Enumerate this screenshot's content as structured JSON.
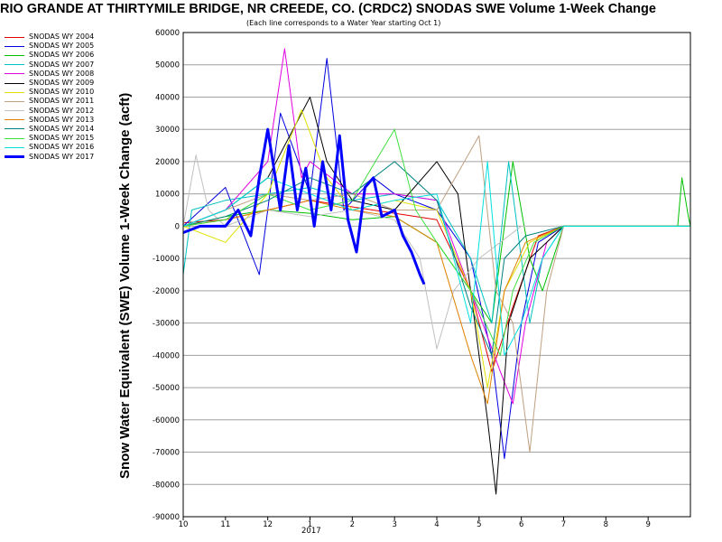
{
  "chart_data": {
    "type": "line",
    "title": "RIO GRANDE AT THIRTYMILE BRIDGE, NR CREEDE, CO. (CRDC2) SNODAS SWE Volume 1-Week Change",
    "subtitle": "(Each line corresponds to a Water Year starting Oct 1)",
    "ylabel": "Snow Water Equivalent (SWE) Volume 1-Week Change (acft)",
    "xlabel": "",
    "ylim": [
      -90000,
      60000
    ],
    "yticks": [
      "60000",
      "50000",
      "40000",
      "30000",
      "20000",
      "10000",
      "0",
      "-10000",
      "-20000",
      "-30000",
      "-40000",
      "-50000",
      "-60000",
      "-70000",
      "-80000",
      "-90000"
    ],
    "xticks": [
      {
        "label": "10",
        "pos": 0
      },
      {
        "label": "11",
        "pos": 1
      },
      {
        "label": "12",
        "pos": 2
      },
      {
        "label": "1",
        "pos": 3
      },
      {
        "label": "2",
        "pos": 4
      },
      {
        "label": "3",
        "pos": 5
      },
      {
        "label": "4",
        "pos": 6
      },
      {
        "label": "5",
        "pos": 7
      },
      {
        "label": "6",
        "pos": 8
      },
      {
        "label": "7",
        "pos": 9
      },
      {
        "label": "8",
        "pos": 10
      },
      {
        "label": "9",
        "pos": 11
      }
    ],
    "xlim": [
      0,
      12
    ],
    "year_label": "2017",
    "grid": true,
    "legend_placement": "left",
    "series": [
      {
        "name": "SNODAS WY 2004",
        "color": "#e00000",
        "width": 1,
        "points": [
          [
            0,
            1000
          ],
          [
            1,
            2000
          ],
          [
            2,
            5000
          ],
          [
            3,
            8000
          ],
          [
            4,
            6000
          ],
          [
            5,
            4000
          ],
          [
            6,
            2000
          ],
          [
            6.8,
            -20000
          ],
          [
            7.3,
            -45000
          ],
          [
            7.8,
            -25000
          ],
          [
            8.4,
            -3000
          ],
          [
            9,
            0
          ],
          [
            12,
            0
          ]
        ]
      },
      {
        "name": "SNODAS WY 2005",
        "color": "#0000e0",
        "width": 1,
        "points": [
          [
            0,
            0
          ],
          [
            1,
            12000
          ],
          [
            1.8,
            -15000
          ],
          [
            2.3,
            35000
          ],
          [
            3,
            10000
          ],
          [
            3.4,
            52000
          ],
          [
            3.8,
            5000
          ],
          [
            4.5,
            15000
          ],
          [
            5,
            10000
          ],
          [
            6,
            5000
          ],
          [
            6.8,
            -10000
          ],
          [
            7.3,
            -40000
          ],
          [
            7.6,
            -72000
          ],
          [
            8,
            -30000
          ],
          [
            8.4,
            -5000
          ],
          [
            9,
            0
          ],
          [
            12,
            0
          ]
        ]
      },
      {
        "name": "SNODAS WY 2006",
        "color": "#00c000",
        "width": 1,
        "points": [
          [
            0,
            0
          ],
          [
            1,
            3000
          ],
          [
            2,
            5000
          ],
          [
            3,
            4000
          ],
          [
            4,
            2000
          ],
          [
            5,
            3000
          ],
          [
            6,
            -5000
          ],
          [
            6.8,
            -20000
          ],
          [
            7.3,
            -30000
          ],
          [
            7.8,
            20000
          ],
          [
            8.2,
            -10000
          ],
          [
            8.5,
            -20000
          ],
          [
            9,
            0
          ],
          [
            11.7,
            0
          ],
          [
            11.8,
            15000
          ],
          [
            11.95,
            3000
          ],
          [
            12,
            0
          ]
        ]
      },
      {
        "name": "SNODAS WY 2007",
        "color": "#00c0c0",
        "width": 1,
        "points": [
          [
            0,
            -15000
          ],
          [
            0.2,
            5000
          ],
          [
            1,
            8000
          ],
          [
            2,
            10000
          ],
          [
            3,
            12000
          ],
          [
            4,
            8000
          ],
          [
            5,
            10000
          ],
          [
            6,
            8000
          ],
          [
            6.8,
            -10000
          ],
          [
            7.3,
            -30000
          ],
          [
            7.7,
            20000
          ],
          [
            8.2,
            -30000
          ],
          [
            8.5,
            -10000
          ],
          [
            9,
            0
          ],
          [
            12,
            0
          ]
        ]
      },
      {
        "name": "SNODAS WY 2008",
        "color": "#e000e0",
        "width": 1,
        "points": [
          [
            0,
            0
          ],
          [
            1,
            5000
          ],
          [
            2,
            20000
          ],
          [
            2.4,
            55000
          ],
          [
            2.8,
            15000
          ],
          [
            3,
            20000
          ],
          [
            4,
            10000
          ],
          [
            5,
            10000
          ],
          [
            6,
            8000
          ],
          [
            6.8,
            -20000
          ],
          [
            7.5,
            -45000
          ],
          [
            7.8,
            -55000
          ],
          [
            8.1,
            -30000
          ],
          [
            8.6,
            -5000
          ],
          [
            9,
            0
          ],
          [
            12,
            0
          ]
        ]
      },
      {
        "name": "SNODAS WY 2009",
        "color": "#000000",
        "width": 1,
        "points": [
          [
            0,
            0
          ],
          [
            1,
            5000
          ],
          [
            2,
            15000
          ],
          [
            3,
            40000
          ],
          [
            3.4,
            20000
          ],
          [
            4,
            8000
          ],
          [
            5,
            5000
          ],
          [
            6,
            20000
          ],
          [
            6.5,
            10000
          ],
          [
            7,
            -40000
          ],
          [
            7.2,
            -60000
          ],
          [
            7.4,
            -83000
          ],
          [
            7.7,
            -30000
          ],
          [
            8.2,
            -10000
          ],
          [
            9,
            0
          ],
          [
            12,
            0
          ]
        ]
      },
      {
        "name": "SNODAS WY 2010",
        "color": "#e0e000",
        "width": 1,
        "points": [
          [
            0,
            0
          ],
          [
            1,
            -5000
          ],
          [
            2,
            10000
          ],
          [
            2.8,
            36000
          ],
          [
            3.4,
            15000
          ],
          [
            4,
            5000
          ],
          [
            5,
            8000
          ],
          [
            6,
            5000
          ],
          [
            6.8,
            -20000
          ],
          [
            7.2,
            -50000
          ],
          [
            7.6,
            -20000
          ],
          [
            8.2,
            -5000
          ],
          [
            9,
            0
          ],
          [
            12,
            0
          ]
        ]
      },
      {
        "name": "SNODAS WY 2011",
        "color": "#c0a080",
        "width": 1,
        "points": [
          [
            0,
            0
          ],
          [
            1,
            5000
          ],
          [
            2,
            10000
          ],
          [
            3,
            8000
          ],
          [
            4,
            10000
          ],
          [
            5,
            5000
          ],
          [
            6,
            5000
          ],
          [
            7,
            28000
          ],
          [
            7.4,
            -20000
          ],
          [
            7.8,
            -30000
          ],
          [
            8.2,
            -70000
          ],
          [
            8.6,
            -20000
          ],
          [
            9,
            0
          ],
          [
            12,
            0
          ]
        ]
      },
      {
        "name": "SNODAS WY 2012",
        "color": "#c0c0c0",
        "width": 1,
        "points": [
          [
            0,
            0
          ],
          [
            0.3,
            22000
          ],
          [
            0.6,
            5000
          ],
          [
            1,
            0
          ],
          [
            2,
            5000
          ],
          [
            3,
            3000
          ],
          [
            4,
            5000
          ],
          [
            5,
            2000
          ],
          [
            5.6,
            -10000
          ],
          [
            6,
            -38000
          ],
          [
            6.4,
            -20000
          ],
          [
            7,
            -10000
          ],
          [
            7.5,
            -5000
          ],
          [
            8,
            0
          ],
          [
            12,
            0
          ]
        ]
      },
      {
        "name": "SNODAS WY 2013",
        "color": "#e08000",
        "width": 1,
        "points": [
          [
            0,
            0
          ],
          [
            1,
            2000
          ],
          [
            2,
            5000
          ],
          [
            3,
            8000
          ],
          [
            4,
            5000
          ],
          [
            5,
            3000
          ],
          [
            6,
            -5000
          ],
          [
            6.8,
            -40000
          ],
          [
            7.2,
            -55000
          ],
          [
            7.6,
            -20000
          ],
          [
            8.1,
            -5000
          ],
          [
            9,
            0
          ],
          [
            12,
            0
          ]
        ]
      },
      {
        "name": "SNODAS WY 2014",
        "color": "#008080",
        "width": 1,
        "points": [
          [
            0,
            0
          ],
          [
            1,
            3000
          ],
          [
            2,
            8000
          ],
          [
            3,
            15000
          ],
          [
            4,
            10000
          ],
          [
            5,
            20000
          ],
          [
            6,
            8000
          ],
          [
            6.8,
            -25000
          ],
          [
            7.3,
            -40000
          ],
          [
            7.6,
            -10000
          ],
          [
            8.1,
            -3000
          ],
          [
            9,
            0
          ],
          [
            12,
            0
          ]
        ]
      },
      {
        "name": "SNODAS WY 2015",
        "color": "#40e040",
        "width": 1,
        "points": [
          [
            0,
            0
          ],
          [
            1,
            2000
          ],
          [
            2,
            10000
          ],
          [
            3,
            5000
          ],
          [
            4,
            8000
          ],
          [
            5,
            30000
          ],
          [
            5.5,
            5000
          ],
          [
            6,
            -5000
          ],
          [
            6.8,
            -20000
          ],
          [
            7.5,
            -40000
          ],
          [
            7.8,
            -20000
          ],
          [
            8.3,
            -5000
          ],
          [
            9,
            0
          ],
          [
            12,
            0
          ]
        ]
      },
      {
        "name": "SNODAS WY 2016",
        "color": "#00e0e0",
        "width": 1,
        "points": [
          [
            0,
            0
          ],
          [
            1,
            5000
          ],
          [
            2,
            15000
          ],
          [
            3,
            10000
          ],
          [
            4,
            5000
          ],
          [
            5,
            8000
          ],
          [
            6,
            10000
          ],
          [
            6.8,
            -30000
          ],
          [
            7.2,
            20000
          ],
          [
            7.6,
            -40000
          ],
          [
            8,
            -30000
          ],
          [
            8.5,
            -10000
          ],
          [
            9,
            0
          ],
          [
            12,
            0
          ]
        ]
      },
      {
        "name": "SNODAS WY 2017",
        "color": "#0000ff",
        "width": 3,
        "points": [
          [
            0,
            -2000
          ],
          [
            0.4,
            0
          ],
          [
            1,
            0
          ],
          [
            1.3,
            5000
          ],
          [
            1.6,
            -3000
          ],
          [
            1.8,
            15000
          ],
          [
            2,
            30000
          ],
          [
            2.3,
            5000
          ],
          [
            2.5,
            25000
          ],
          [
            2.7,
            5000
          ],
          [
            2.9,
            18000
          ],
          [
            3.1,
            0
          ],
          [
            3.3,
            20000
          ],
          [
            3.5,
            5000
          ],
          [
            3.7,
            28000
          ],
          [
            3.9,
            2000
          ],
          [
            4.1,
            -8000
          ],
          [
            4.3,
            12000
          ],
          [
            4.5,
            15000
          ],
          [
            4.7,
            3000
          ],
          [
            5,
            5000
          ],
          [
            5.2,
            -3000
          ],
          [
            5.4,
            -8000
          ],
          [
            5.6,
            -15000
          ],
          [
            5.7,
            -18000
          ]
        ]
      }
    ]
  }
}
